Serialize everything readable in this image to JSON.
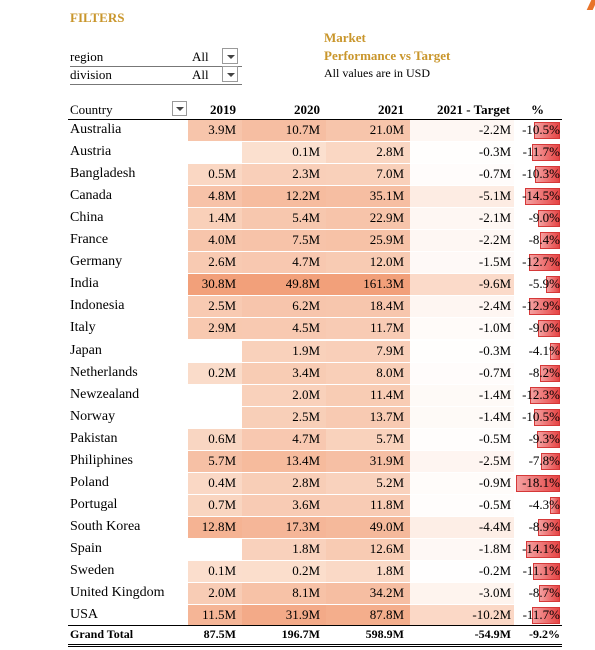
{
  "filters": {
    "title": "FILTERS",
    "items": [
      {
        "label": "region",
        "value": "All"
      },
      {
        "label": "division",
        "value": "All"
      }
    ]
  },
  "header_info": {
    "title_line1": "Market",
    "title_line2": "Performance vs Target",
    "note": "All values are in USD"
  },
  "table": {
    "columns": [
      "Country",
      "2019",
      "2020",
      "2021",
      "2021 - Target",
      "%"
    ],
    "rows": [
      {
        "country": "Australia",
        "y2019": "3.9M",
        "y2020": "10.7M",
        "y2021": "21.0M",
        "target": "-2.2M",
        "pct": "-10.5%",
        "pct_value": -10.5
      },
      {
        "country": "Austria",
        "y2019": "",
        "y2020": "0.1M",
        "y2021": "2.8M",
        "target": "-0.3M",
        "pct": "-11.7%",
        "pct_value": -11.7
      },
      {
        "country": "Bangladesh",
        "y2019": "0.5M",
        "y2020": "2.3M",
        "y2021": "7.0M",
        "target": "-0.7M",
        "pct": "-10.3%",
        "pct_value": -10.3
      },
      {
        "country": "Canada",
        "y2019": "4.8M",
        "y2020": "12.2M",
        "y2021": "35.1M",
        "target": "-5.1M",
        "pct": "-14.5%",
        "pct_value": -14.5
      },
      {
        "country": "China",
        "y2019": "1.4M",
        "y2020": "5.4M",
        "y2021": "22.9M",
        "target": "-2.1M",
        "pct": "-9.0%",
        "pct_value": -9.0
      },
      {
        "country": "France",
        "y2019": "4.0M",
        "y2020": "7.5M",
        "y2021": "25.9M",
        "target": "-2.2M",
        "pct": "-8.4%",
        "pct_value": -8.4
      },
      {
        "country": "Germany",
        "y2019": "2.6M",
        "y2020": "4.7M",
        "y2021": "12.0M",
        "target": "-1.5M",
        "pct": "-12.7%",
        "pct_value": -12.7
      },
      {
        "country": "India",
        "y2019": "30.8M",
        "y2020": "49.8M",
        "y2021": "161.3M",
        "target": "-9.6M",
        "pct": "-5.9%",
        "pct_value": -5.9
      },
      {
        "country": "Indonesia",
        "y2019": "2.5M",
        "y2020": "6.2M",
        "y2021": "18.4M",
        "target": "-2.4M",
        "pct": "-12.9%",
        "pct_value": -12.9
      },
      {
        "country": "Italy",
        "y2019": "2.9M",
        "y2020": "4.5M",
        "y2021": "11.7M",
        "target": "-1.0M",
        "pct": "-9.0%",
        "pct_value": -9.0
      },
      {
        "country": "Japan",
        "y2019": "",
        "y2020": "1.9M",
        "y2021": "7.9M",
        "target": "-0.3M",
        "pct": "-4.1%",
        "pct_value": -4.1
      },
      {
        "country": "Netherlands",
        "y2019": "0.2M",
        "y2020": "3.4M",
        "y2021": "8.0M",
        "target": "-0.7M",
        "pct": "-8.2%",
        "pct_value": -8.2
      },
      {
        "country": "Newzealand",
        "y2019": "",
        "y2020": "2.0M",
        "y2021": "11.4M",
        "target": "-1.4M",
        "pct": "-12.3%",
        "pct_value": -12.3
      },
      {
        "country": "Norway",
        "y2019": "",
        "y2020": "2.5M",
        "y2021": "13.7M",
        "target": "-1.4M",
        "pct": "-10.5%",
        "pct_value": -10.5
      },
      {
        "country": "Pakistan",
        "y2019": "0.6M",
        "y2020": "4.7M",
        "y2021": "5.7M",
        "target": "-0.5M",
        "pct": "-9.3%",
        "pct_value": -9.3
      },
      {
        "country": "Philiphines",
        "y2019": "5.7M",
        "y2020": "13.4M",
        "y2021": "31.9M",
        "target": "-2.5M",
        "pct": "-7.8%",
        "pct_value": -7.8
      },
      {
        "country": "Poland",
        "y2019": "0.4M",
        "y2020": "2.8M",
        "y2021": "5.2M",
        "target": "-0.9M",
        "pct": "-18.1%",
        "pct_value": -18.1
      },
      {
        "country": "Portugal",
        "y2019": "0.7M",
        "y2020": "3.6M",
        "y2021": "11.8M",
        "target": "-0.5M",
        "pct": "-4.3%",
        "pct_value": -4.3
      },
      {
        "country": "South Korea",
        "y2019": "12.8M",
        "y2020": "17.3M",
        "y2021": "49.0M",
        "target": "-4.4M",
        "pct": "-8.9%",
        "pct_value": -8.9
      },
      {
        "country": "Spain",
        "y2019": "",
        "y2020": "1.8M",
        "y2021": "12.6M",
        "target": "-1.8M",
        "pct": "-14.1%",
        "pct_value": -14.1
      },
      {
        "country": "Sweden",
        "y2019": "0.1M",
        "y2020": "0.2M",
        "y2021": "1.8M",
        "target": "-0.2M",
        "pct": "-11.1%",
        "pct_value": -11.1
      },
      {
        "country": "United Kingdom",
        "y2019": "2.0M",
        "y2020": "8.1M",
        "y2021": "34.2M",
        "target": "-3.0M",
        "pct": "-8.7%",
        "pct_value": -8.7
      },
      {
        "country": "USA",
        "y2019": "11.5M",
        "y2020": "31.9M",
        "y2021": "87.8M",
        "target": "-10.2M",
        "pct": "-11.7%",
        "pct_value": -11.7
      }
    ],
    "total": {
      "label": "Grand Total",
      "y2019": "87.5M",
      "y2020": "196.7M",
      "y2021": "598.9M",
      "target": "-54.9M",
      "pct": "-9.2%"
    }
  },
  "colors": {
    "accent": "#c9962c",
    "heat_base": "#f6c5aa",
    "heat_high": "#f1a884",
    "bar_red": "#e64545"
  }
}
